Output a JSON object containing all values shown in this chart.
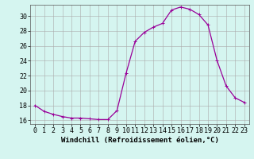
{
  "hours": [
    0,
    1,
    2,
    3,
    4,
    5,
    6,
    7,
    8,
    9,
    10,
    11,
    12,
    13,
    14,
    15,
    16,
    17,
    18,
    19,
    20,
    21,
    22,
    23
  ],
  "values": [
    18.0,
    17.2,
    16.8,
    16.5,
    16.3,
    16.3,
    16.2,
    16.1,
    16.1,
    17.3,
    22.3,
    26.6,
    27.8,
    28.5,
    29.0,
    30.8,
    31.2,
    30.9,
    30.2,
    28.8,
    24.0,
    20.6,
    19.0,
    18.4
  ],
  "line_color": "#990099",
  "marker": "+",
  "marker_size": 3,
  "bg_color": "#d5f5f0",
  "grid_color": "#aaaaaa",
  "xlabel": "Windchill (Refroidissement éolien,°C)",
  "ylim": [
    15.5,
    31.5
  ],
  "xlim": [
    -0.5,
    23.5
  ],
  "yticks": [
    16,
    18,
    20,
    22,
    24,
    26,
    28,
    30
  ],
  "xticks": [
    0,
    1,
    2,
    3,
    4,
    5,
    6,
    7,
    8,
    9,
    10,
    11,
    12,
    13,
    14,
    15,
    16,
    17,
    18,
    19,
    20,
    21,
    22,
    23
  ],
  "xlabel_fontsize": 6.5,
  "tick_fontsize": 6,
  "line_width": 0.9
}
